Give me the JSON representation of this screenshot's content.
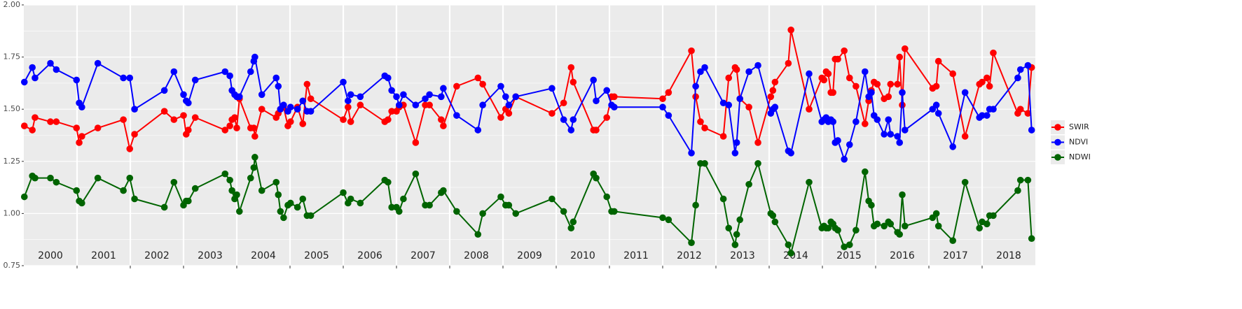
{
  "chart_data": {
    "type": "line",
    "xlim": [
      2000,
      2019
    ],
    "xticks": [
      {
        "value": 2000,
        "label": "2000"
      },
      {
        "value": 2001,
        "label": "2001"
      },
      {
        "value": 2002,
        "label": "2002"
      },
      {
        "value": 2003,
        "label": "2003"
      },
      {
        "value": 2004,
        "label": "2004"
      },
      {
        "value": 2005,
        "label": "2005"
      },
      {
        "value": 2006,
        "label": "2006"
      },
      {
        "value": 2007,
        "label": "2007"
      },
      {
        "value": 2008,
        "label": "2008"
      },
      {
        "value": 2009,
        "label": "2009"
      },
      {
        "value": 2010,
        "label": "2010"
      },
      {
        "value": 2011,
        "label": "2011"
      },
      {
        "value": 2012,
        "label": "2012"
      },
      {
        "value": 2013,
        "label": "2013"
      },
      {
        "value": 2014,
        "label": "2014"
      },
      {
        "value": 2015,
        "label": "2015"
      },
      {
        "value": 2016,
        "label": "2016"
      },
      {
        "value": 2017,
        "label": "2017"
      },
      {
        "value": 2018,
        "label": "2018"
      }
    ],
    "ylim": [
      0.75,
      2.0
    ],
    "yticks": [
      0.75,
      {
        "value": 1.0,
        "label": "1.00"
      },
      1.25,
      {
        "value": 1.5,
        "label": "1.50"
      },
      1.75,
      {
        "value": 2.0,
        "label": "2.00"
      }
    ],
    "yminor": [
      0.875,
      1.125,
      1.375,
      1.625,
      1.875
    ],
    "grid": true,
    "legend": "right",
    "x": [
      2000.01,
      2000.16,
      2000.21,
      2000.5,
      2000.61,
      2000.99,
      2001.04,
      2001.09,
      2001.39,
      2001.87,
      2001.99,
      2002.08,
      2002.64,
      2002.82,
      2003.0,
      2003.05,
      2003.09,
      2003.22,
      2003.78,
      2003.87,
      2003.91,
      2003.96,
      2004.0,
      2004.05,
      2004.26,
      2004.32,
      2004.34,
      2004.47,
      2004.74,
      2004.78,
      2004.82,
      2004.88,
      2004.96,
      2005.01,
      2005.14,
      2005.24,
      2005.32,
      2005.39,
      2006.0,
      2006.09,
      2006.14,
      2006.32,
      2006.78,
      2006.84,
      2006.91,
      2007.0,
      2007.05,
      2007.13,
      2007.36,
      2007.54,
      2007.62,
      2007.84,
      2007.88,
      2008.13,
      2008.53,
      2008.62,
      2008.96,
      2009.05,
      2009.11,
      2009.24,
      2009.92,
      2010.14,
      2010.28,
      2010.32,
      2010.7,
      2010.75,
      2010.95,
      2011.04,
      2011.09,
      2012.0,
      2012.11,
      2012.54,
      2012.62,
      2012.71,
      2012.79,
      2013.14,
      2013.24,
      2013.36,
      2013.39,
      2013.45,
      2013.62,
      2013.79,
      2014.03,
      2014.07,
      2014.11,
      2014.36,
      2014.41,
      2014.75,
      2014.99,
      2015.03,
      2015.07,
      2015.11,
      2015.16,
      2015.2,
      2015.24,
      2015.29,
      2015.41,
      2015.51,
      2015.63,
      2015.8,
      2015.87,
      2015.92,
      2015.97,
      2016.03,
      2016.16,
      2016.24,
      2016.28,
      2016.41,
      2016.45,
      2016.5,
      2016.55,
      2017.07,
      2017.14,
      2017.18,
      2017.45,
      2017.68,
      2017.95,
      2018.0,
      2018.09,
      2018.14,
      2018.21,
      2018.67,
      2018.72,
      2018.86,
      2018.93
    ],
    "series": [
      {
        "name": "SWIR",
        "color": "#ff0000",
        "values": [
          1.42,
          1.4,
          1.46,
          1.44,
          1.44,
          1.41,
          1.34,
          1.37,
          1.41,
          1.45,
          1.31,
          1.38,
          1.49,
          1.45,
          1.47,
          1.38,
          1.4,
          1.46,
          1.4,
          1.42,
          1.45,
          1.46,
          1.41,
          1.55,
          1.41,
          1.41,
          1.37,
          1.5,
          1.46,
          1.48,
          1.5,
          1.51,
          1.42,
          1.44,
          1.51,
          1.43,
          1.62,
          1.55,
          1.45,
          1.51,
          1.44,
          1.52,
          1.44,
          1.45,
          1.49,
          1.49,
          1.51,
          1.52,
          1.34,
          1.52,
          1.52,
          1.45,
          1.42,
          1.61,
          1.65,
          1.62,
          1.46,
          1.5,
          1.48,
          1.56,
          1.48,
          1.53,
          1.7,
          1.63,
          1.4,
          1.4,
          1.46,
          1.56,
          1.56,
          1.55,
          1.58,
          1.78,
          1.56,
          1.44,
          1.41,
          1.37,
          1.65,
          1.7,
          1.69,
          1.55,
          1.51,
          1.34,
          1.56,
          1.59,
          1.63,
          1.72,
          1.88,
          1.5,
          1.65,
          1.64,
          1.68,
          1.67,
          1.58,
          1.58,
          1.74,
          1.74,
          1.78,
          1.65,
          1.61,
          1.43,
          1.54,
          1.59,
          1.63,
          1.62,
          1.55,
          1.56,
          1.62,
          1.62,
          1.75,
          1.52,
          1.79,
          1.6,
          1.61,
          1.73,
          1.67,
          1.37,
          1.62,
          1.63,
          1.65,
          1.61,
          1.77,
          1.48,
          1.5,
          1.48,
          1.7
        ]
      },
      {
        "name": "NDVI",
        "color": "#0000ff",
        "values": [
          1.63,
          1.7,
          1.65,
          1.72,
          1.69,
          1.64,
          1.53,
          1.51,
          1.72,
          1.65,
          1.65,
          1.5,
          1.59,
          1.68,
          1.57,
          1.54,
          1.53,
          1.64,
          1.68,
          1.66,
          1.59,
          1.57,
          1.56,
          1.56,
          1.68,
          1.73,
          1.75,
          1.57,
          1.65,
          1.61,
          1.5,
          1.52,
          1.49,
          1.51,
          1.5,
          1.54,
          1.49,
          1.49,
          1.63,
          1.54,
          1.57,
          1.56,
          1.66,
          1.65,
          1.59,
          1.56,
          1.52,
          1.57,
          1.52,
          1.55,
          1.57,
          1.56,
          1.6,
          1.47,
          1.4,
          1.52,
          1.61,
          1.56,
          1.52,
          1.56,
          1.6,
          1.45,
          1.4,
          1.45,
          1.64,
          1.54,
          1.59,
          1.52,
          1.51,
          1.51,
          1.47,
          1.29,
          1.61,
          1.68,
          1.7,
          1.53,
          1.52,
          1.29,
          1.34,
          1.55,
          1.68,
          1.71,
          1.48,
          1.5,
          1.51,
          1.3,
          1.29,
          1.67,
          1.44,
          1.45,
          1.46,
          1.44,
          1.45,
          1.44,
          1.34,
          1.35,
          1.26,
          1.33,
          1.44,
          1.68,
          1.56,
          1.58,
          1.47,
          1.45,
          1.38,
          1.45,
          1.38,
          1.37,
          1.34,
          1.58,
          1.4,
          1.5,
          1.52,
          1.48,
          1.32,
          1.58,
          1.46,
          1.47,
          1.47,
          1.5,
          1.5,
          1.65,
          1.69,
          1.71,
          1.4
        ]
      },
      {
        "name": "NDWI",
        "color": "#006400",
        "values": [
          1.08,
          1.18,
          1.17,
          1.17,
          1.15,
          1.11,
          1.06,
          1.05,
          1.17,
          1.11,
          1.17,
          1.07,
          1.03,
          1.15,
          1.04,
          1.06,
          1.06,
          1.12,
          1.19,
          1.16,
          1.11,
          1.07,
          1.09,
          1.01,
          1.17,
          1.22,
          1.27,
          1.11,
          1.15,
          1.09,
          1.01,
          0.98,
          1.04,
          1.05,
          1.03,
          1.07,
          0.99,
          0.99,
          1.1,
          1.05,
          1.07,
          1.05,
          1.16,
          1.15,
          1.03,
          1.03,
          1.01,
          1.07,
          1.19,
          1.04,
          1.04,
          1.1,
          1.11,
          1.01,
          0.9,
          1.0,
          1.08,
          1.04,
          1.04,
          1.0,
          1.07,
          1.01,
          0.93,
          0.96,
          1.19,
          1.17,
          1.08,
          1.01,
          1.01,
          0.98,
          0.97,
          0.86,
          1.04,
          1.24,
          1.24,
          1.07,
          0.93,
          0.85,
          0.9,
          0.97,
          1.14,
          1.24,
          1.0,
          0.99,
          0.96,
          0.85,
          0.81,
          1.15,
          0.93,
          0.94,
          0.93,
          0.93,
          0.96,
          0.95,
          0.93,
          0.92,
          0.84,
          0.85,
          0.92,
          1.2,
          1.06,
          1.04,
          0.94,
          0.95,
          0.94,
          0.96,
          0.95,
          0.91,
          0.9,
          1.09,
          0.94,
          0.98,
          1.0,
          0.94,
          0.87,
          1.15,
          0.93,
          0.96,
          0.95,
          0.99,
          0.99,
          1.11,
          1.16,
          1.16,
          0.88
        ]
      }
    ]
  }
}
